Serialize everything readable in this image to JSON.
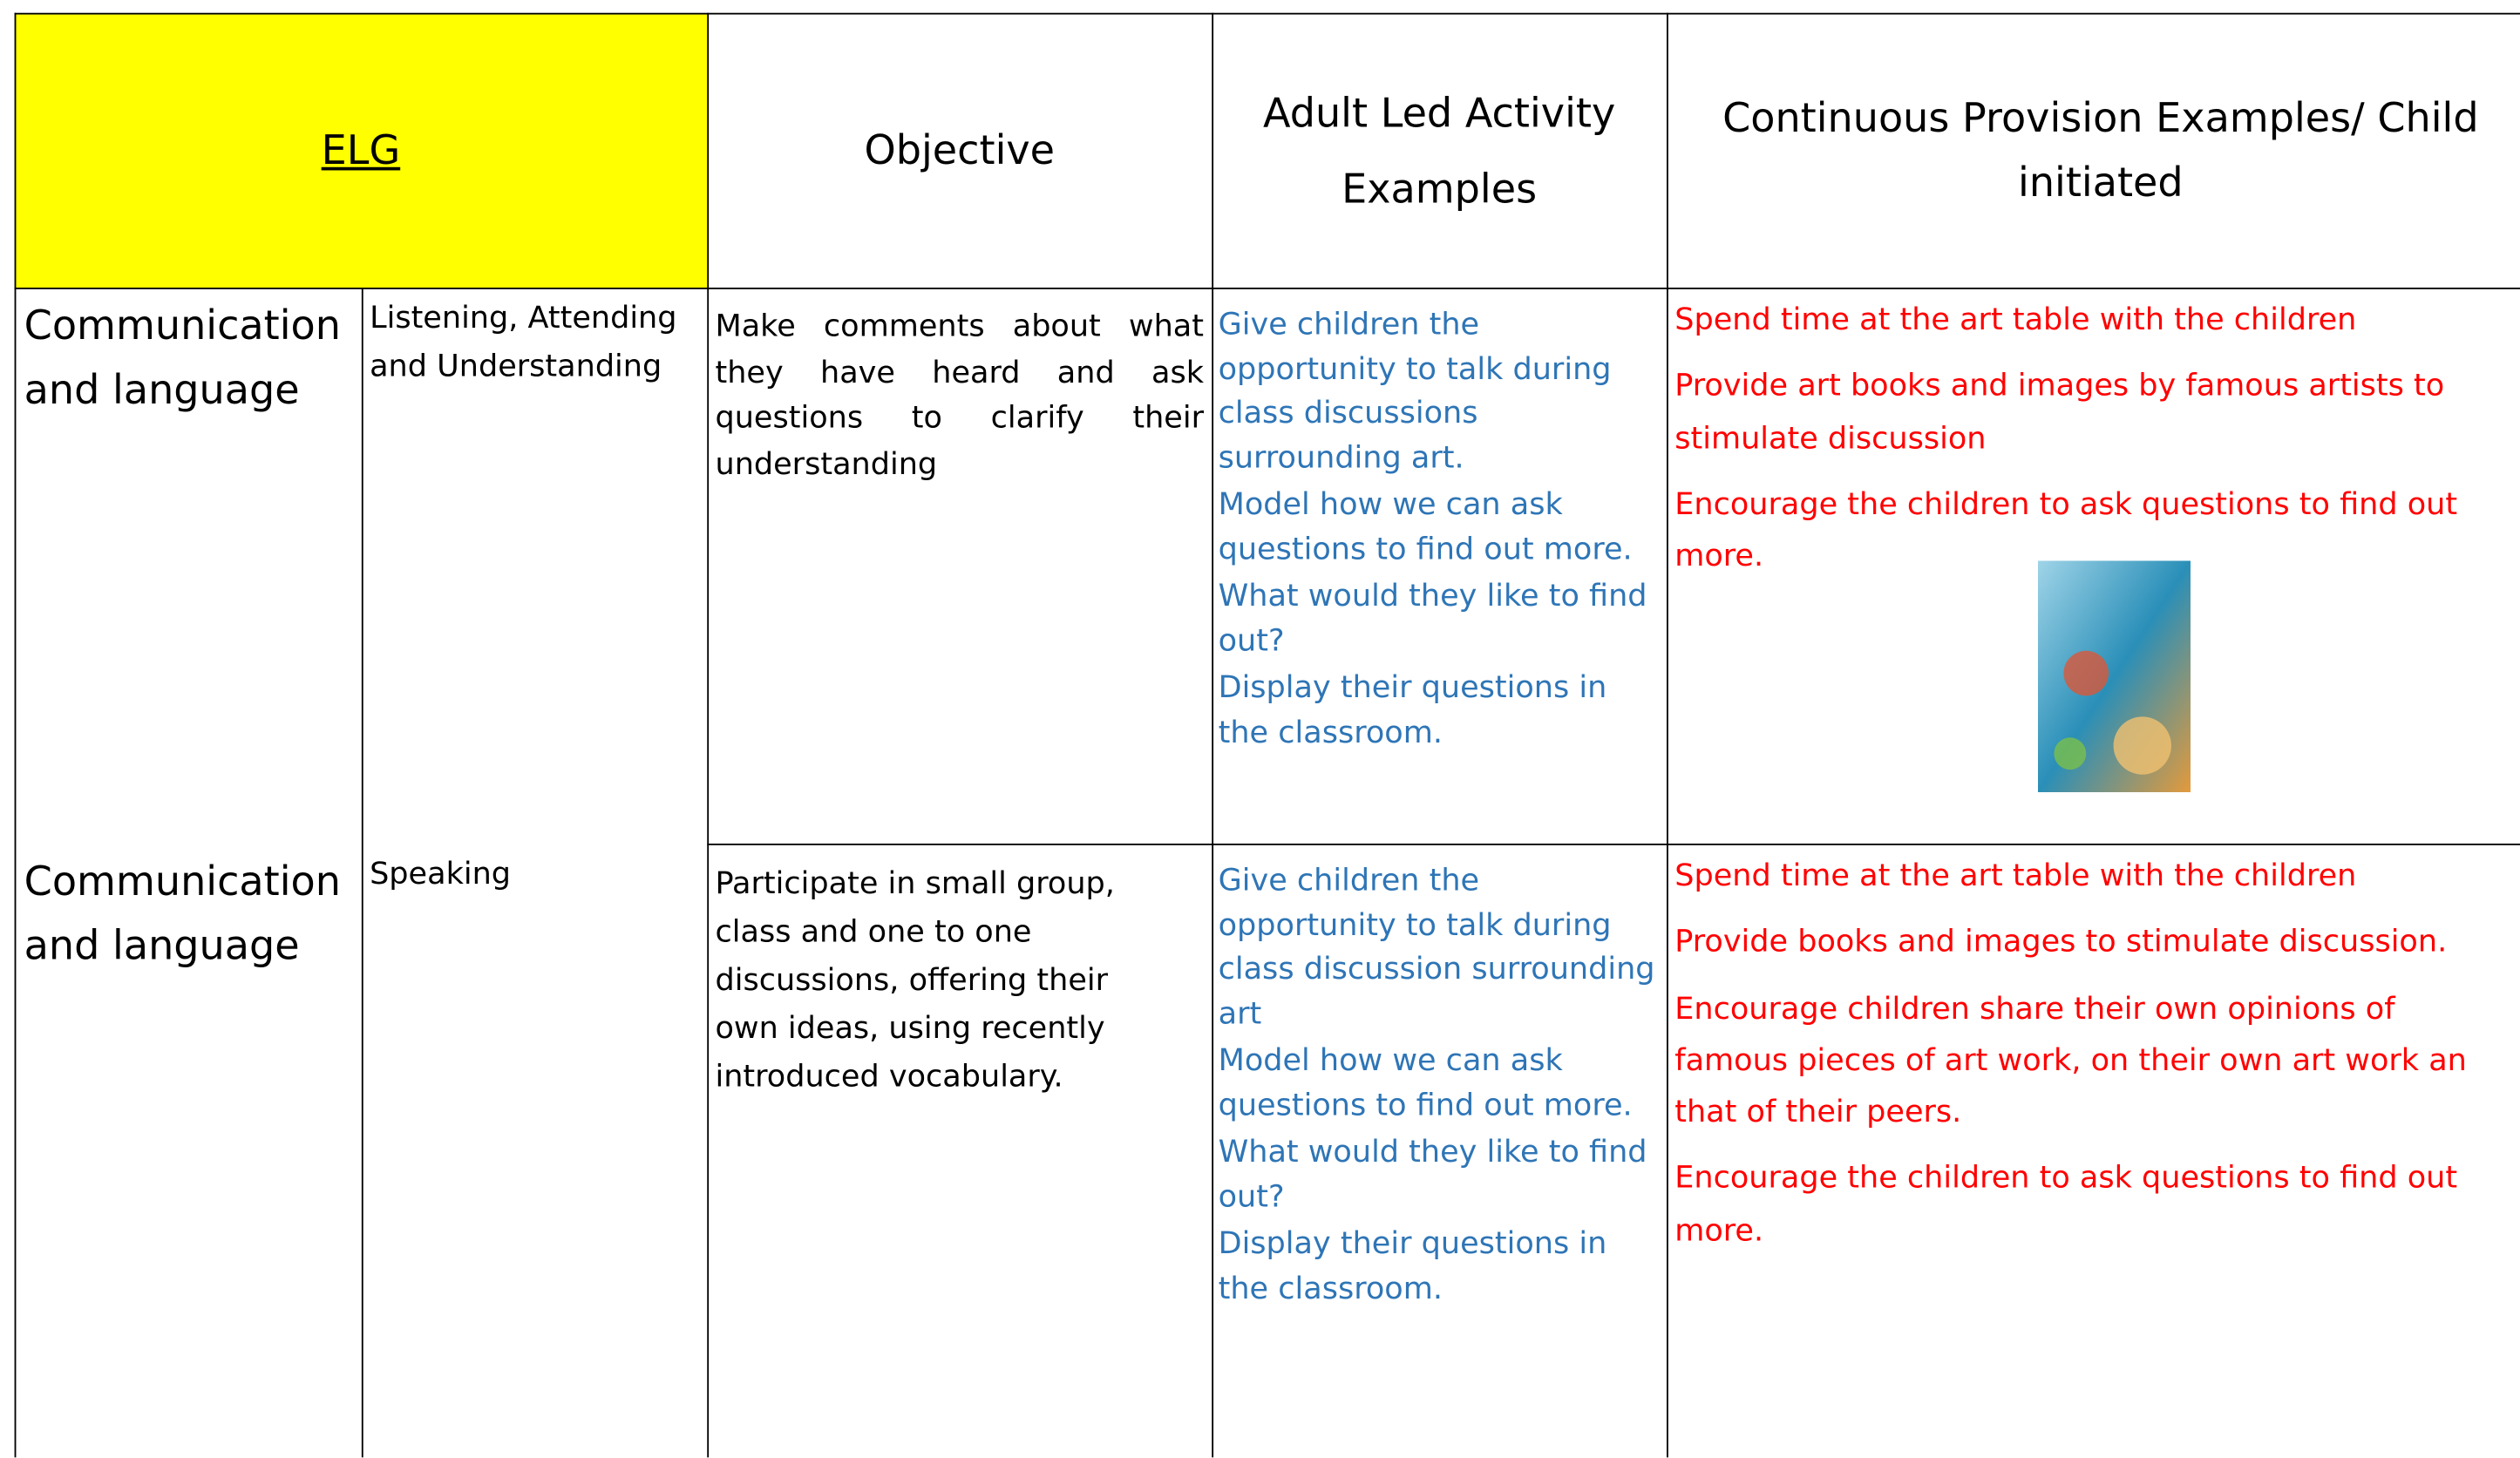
{
  "header": {
    "elg": "ELG",
    "objective": "Objective",
    "adult": "Adult Led Activity Examples",
    "continuous": "Continuous Provision Examples/ Child initiated"
  },
  "rows": [
    {
      "area": "Communication and language",
      "aspect": "Listening, Attending and Understanding",
      "objective": "Make comments about what they have heard and ask questions to clarify their understanding",
      "adult": [
        "Give children the opportunity to talk during class discussions surrounding art.",
        "Model how we can ask questions to find out more.",
        "What would they like to find out?",
        "Display their questions in the classroom."
      ],
      "continuous": [
        "Spend time at the art table with the children",
        "Provide art books and images by famous artists to stimulate discussion",
        "Encourage the children to ask questions to find out more."
      ]
    },
    {
      "area": "Communication and language",
      "aspect": "Speaking",
      "objective": "Participate in small group, class and one to one discussions, offering their own ideas, using recently introduced vocabulary.",
      "adult": [
        "Give children the opportunity to talk during class discussion surrounding art",
        "Model how we can ask questions to find out more.",
        "What would they like to find out?",
        "Display their questions in the classroom."
      ],
      "continuous": [
        "Spend time at the art table with the children",
        "Provide books and images to stimulate discussion.",
        "Encourage children share their own opinions of famous pieces of art work, on their own art work an that of their peers.",
        "Encourage the children to ask questions to find out more."
      ]
    }
  ]
}
